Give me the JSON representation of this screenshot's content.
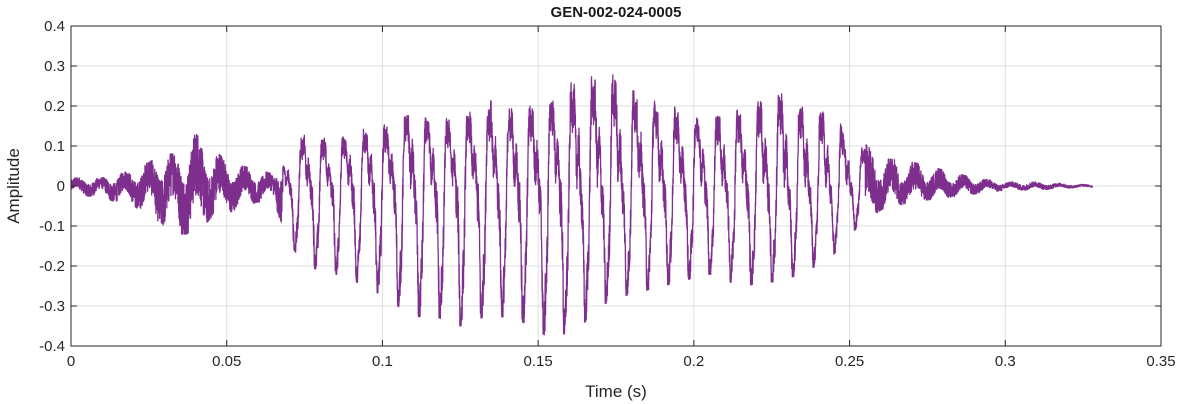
{
  "chart_data": {
    "type": "line",
    "title": "GEN-002-024-0005",
    "xlabel": "Time (s)",
    "ylabel": "Amplitude",
    "xlim": [
      0,
      0.35
    ],
    "ylim": [
      -0.4,
      0.4
    ],
    "xticks": [
      0,
      0.05,
      0.1,
      0.15,
      0.2,
      0.25,
      0.3,
      0.35
    ],
    "xtick_labels": [
      "0",
      "0.05",
      "0.1",
      "0.15",
      "0.2",
      "0.25",
      "0.3",
      "0.35"
    ],
    "yticks": [
      -0.4,
      -0.3,
      -0.2,
      -0.1,
      0,
      0.1,
      0.2,
      0.3,
      0.4
    ],
    "ytick_labels": [
      "-0.4",
      "-0.3",
      "-0.2",
      "-0.1",
      "0",
      "0.1",
      "0.2",
      "0.3",
      "0.4"
    ],
    "grid": true,
    "line_color": "#7E2F8E",
    "series": [
      {
        "values_note_omitted": null,
        "x_start": 0,
        "x_end": 0.328,
        "envelope": {
          "t": [
            0,
            0.01,
            0.02,
            0.025,
            0.03,
            0.035,
            0.04,
            0.045,
            0.05,
            0.055,
            0.06,
            0.065,
            0.07,
            0.075,
            0.085,
            0.095,
            0.105,
            0.11,
            0.115,
            0.125,
            0.135,
            0.145,
            0.15,
            0.155,
            0.16,
            0.165,
            0.17,
            0.175,
            0.18,
            0.185,
            0.195,
            0.205,
            0.215,
            0.225,
            0.23,
            0.235,
            0.245,
            0.25,
            0.26,
            0.27,
            0.28,
            0.29,
            0.3,
            0.31,
            0.32,
            0.328
          ],
          "upper": [
            0.02,
            0.02,
            0.04,
            0.06,
            0.08,
            0.08,
            0.13,
            0.1,
            0.06,
            0.05,
            0.04,
            0.03,
            0.09,
            0.15,
            0.14,
            0.17,
            0.18,
            0.24,
            0.19,
            0.2,
            0.25,
            0.22,
            0.25,
            0.26,
            0.29,
            0.31,
            0.32,
            0.32,
            0.29,
            0.26,
            0.22,
            0.21,
            0.22,
            0.27,
            0.27,
            0.24,
            0.21,
            0.14,
            0.07,
            0.06,
            0.04,
            0.02,
            0.01,
            0.01,
            0.005,
            0.003
          ],
          "lower": [
            -0.02,
            -0.03,
            -0.05,
            -0.07,
            -0.1,
            -0.12,
            -0.12,
            -0.08,
            -0.07,
            -0.05,
            -0.04,
            -0.04,
            -0.14,
            -0.2,
            -0.22,
            -0.25,
            -0.3,
            -0.33,
            -0.32,
            -0.35,
            -0.32,
            -0.34,
            -0.36,
            -0.39,
            -0.36,
            -0.34,
            -0.3,
            -0.28,
            -0.27,
            -0.26,
            -0.24,
            -0.22,
            -0.25,
            -0.24,
            -0.23,
            -0.22,
            -0.17,
            -0.12,
            -0.06,
            -0.04,
            -0.03,
            -0.02,
            -0.01,
            -0.01,
            -0.005,
            -0.003
          ]
        }
      }
    ]
  }
}
